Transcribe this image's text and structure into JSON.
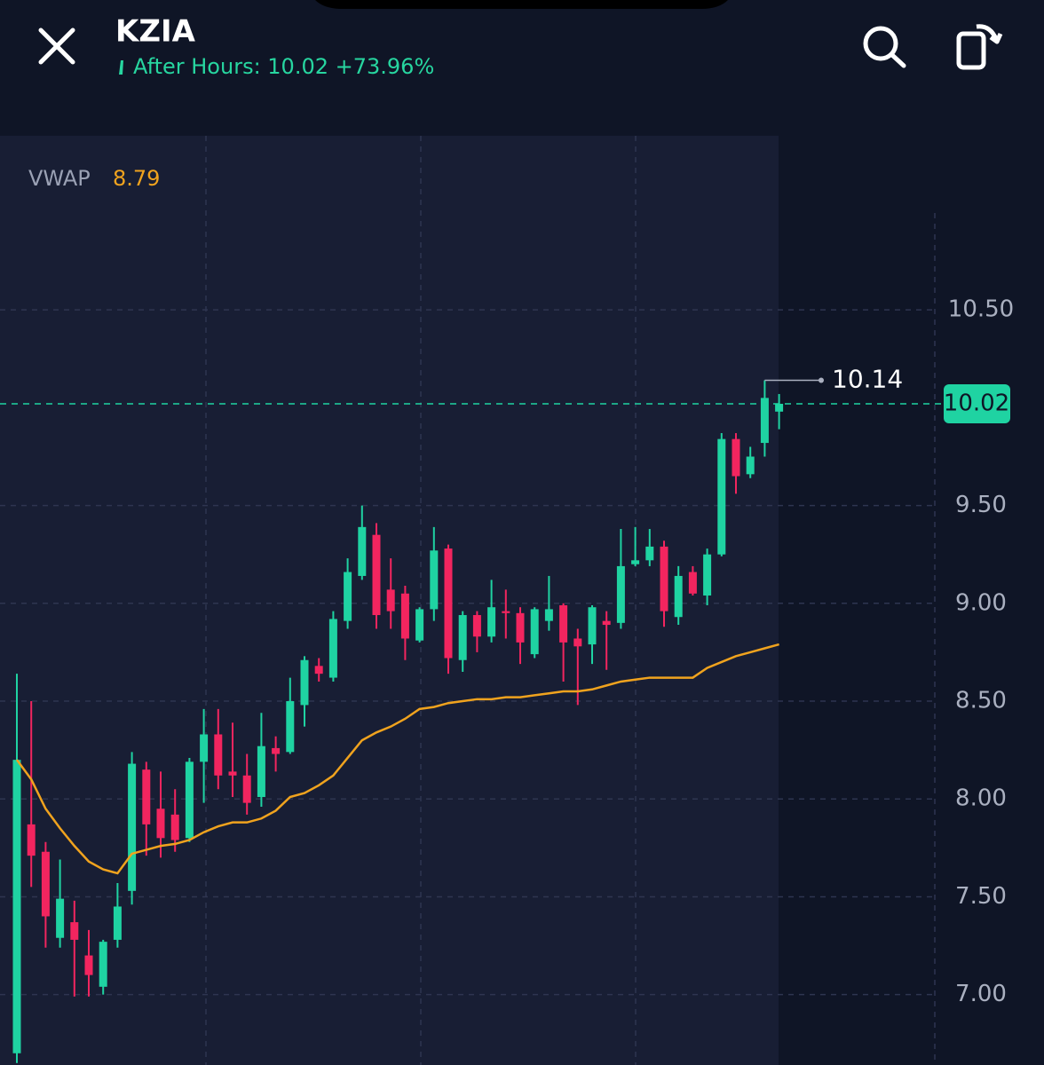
{
  "header": {
    "ticker": "KZIA",
    "status": "After Hours: 10.02 +73.96%"
  },
  "chart_data": {
    "type": "candlestick",
    "up_color": "#1fd3a2",
    "down_color": "#f2255f",
    "ylim": [
      6.64,
      11.39
    ],
    "yticks": [
      {
        "value": 10.5,
        "label": "10.50"
      },
      {
        "value": 9.5,
        "label": "9.50"
      },
      {
        "value": 9,
        "label": "9.00"
      },
      {
        "value": 8.5,
        "label": "8.50"
      },
      {
        "value": 8,
        "label": "8.00"
      },
      {
        "value": 7.5,
        "label": "7.50"
      },
      {
        "value": 7,
        "label": "7.00"
      }
    ],
    "grid": true,
    "open": [
      6.7,
      7.87,
      7.73,
      7.29,
      7.37,
      7.2,
      7.04,
      7.28,
      7.53,
      8.15,
      7.95,
      7.92,
      7.8,
      8.19,
      8.33,
      8.14,
      8.12,
      8.01,
      8.26,
      8.24,
      8.48,
      8.68,
      8.62,
      8.91,
      9.14,
      9.35,
      9.07,
      9.05,
      8.81,
      8.97,
      9.28,
      8.71,
      8.94,
      8.83,
      8.96,
      8.95,
      8.74,
      8.91,
      8.99,
      8.82,
      8.79,
      8.91,
      8.9,
      9.2,
      9.22,
      9.29,
      8.93,
      9.16,
      9.04,
      9.25,
      9.84,
      9.66,
      9.82,
      9.98
    ],
    "high": [
      8.64,
      8.5,
      7.78,
      7.69,
      7.48,
      7.33,
      7.28,
      7.57,
      8.24,
      8.19,
      8.14,
      8.05,
      8.21,
      8.46,
      8.46,
      8.39,
      8.23,
      8.44,
      8.32,
      8.62,
      8.73,
      8.72,
      8.96,
      9.23,
      9.5,
      9.41,
      9.23,
      9.09,
      8.98,
      9.39,
      9.3,
      8.96,
      8.96,
      9.12,
      9.07,
      8.98,
      8.98,
      9.14,
      9.0,
      8.87,
      8.99,
      8.96,
      9.38,
      9.39,
      9.38,
      9.32,
      9.19,
      9.19,
      9.28,
      9.87,
      9.87,
      9.8,
      10.14,
      10.07
    ],
    "low": [
      6.65,
      7.55,
      7.24,
      7.24,
      6.99,
      6.99,
      7.0,
      7.24,
      7.46,
      7.71,
      7.7,
      7.73,
      7.78,
      7.98,
      8.05,
      8.01,
      7.92,
      7.96,
      8.14,
      8.23,
      8.37,
      8.6,
      8.6,
      8.87,
      9.12,
      8.87,
      8.87,
      8.71,
      8.8,
      8.91,
      8.64,
      8.65,
      8.75,
      8.8,
      8.82,
      8.69,
      8.72,
      8.86,
      8.6,
      8.48,
      8.69,
      8.66,
      8.87,
      9.19,
      9.19,
      8.88,
      8.89,
      9.04,
      8.99,
      9.24,
      9.56,
      9.64,
      9.75,
      9.89
    ],
    "close": [
      8.2,
      7.71,
      7.4,
      7.49,
      7.28,
      7.1,
      7.27,
      7.45,
      8.18,
      7.87,
      7.8,
      7.79,
      8.19,
      8.33,
      8.12,
      8.12,
      7.98,
      8.27,
      8.23,
      8.5,
      8.71,
      8.64,
      8.92,
      9.16,
      9.39,
      8.94,
      8.96,
      8.82,
      8.97,
      9.27,
      8.72,
      8.94,
      8.83,
      8.98,
      8.95,
      8.8,
      8.97,
      8.97,
      8.8,
      8.78,
      8.98,
      8.89,
      9.19,
      9.22,
      9.29,
      8.96,
      9.14,
      9.05,
      9.25,
      9.84,
      9.65,
      9.75,
      10.05,
      10.02
    ],
    "vwap": {
      "name": "VWAP",
      "color": "#f0a31e",
      "values": [
        8.2,
        8.1,
        7.95,
        7.85,
        7.76,
        7.68,
        7.64,
        7.62,
        7.72,
        7.74,
        7.76,
        7.77,
        7.79,
        7.83,
        7.86,
        7.88,
        7.88,
        7.9,
        7.94,
        8.01,
        8.03,
        8.07,
        8.12,
        8.21,
        8.3,
        8.34,
        8.37,
        8.41,
        8.46,
        8.47,
        8.49,
        8.5,
        8.51,
        8.51,
        8.52,
        8.52,
        8.53,
        8.54,
        8.55,
        8.55,
        8.56,
        8.58,
        8.6,
        8.61,
        8.62,
        8.62,
        8.62,
        8.62,
        8.67,
        8.7,
        8.73,
        8.75,
        8.77,
        8.79
      ]
    }
  }
}
